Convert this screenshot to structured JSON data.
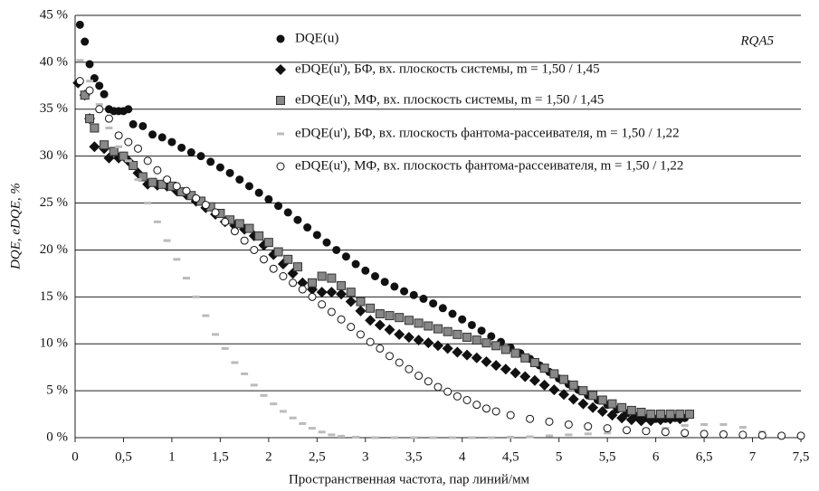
{
  "chart_data": {
    "type": "scatter",
    "xlabel": "Пространственная частота, пар линий/мм",
    "ylabel": "DQE, eDQE, %",
    "annotation": "RQA5",
    "grid": true,
    "xlim": [
      0,
      7.5
    ],
    "xticks": [
      0,
      {
        "value": 0.5,
        "label": "0,5"
      },
      1,
      {
        "value": 1.5,
        "label": "1,5"
      },
      2,
      {
        "value": 2.5,
        "label": "2,5"
      },
      3,
      {
        "value": 3.5,
        "label": "3,5"
      },
      4,
      {
        "value": 4.5,
        "label": "4,5"
      },
      5,
      {
        "value": 5.5,
        "label": "5,5"
      },
      6,
      {
        "value": 6.5,
        "label": "6,5"
      },
      7,
      {
        "value": 7.5,
        "label": "7,5"
      }
    ],
    "ylim": [
      0,
      45
    ],
    "yticks": [
      {
        "value": 0,
        "label": "0 %"
      },
      {
        "value": 5,
        "label": "5 %"
      },
      {
        "value": 10,
        "label": "10 %"
      },
      {
        "value": 15,
        "label": "15 %"
      },
      {
        "value": 20,
        "label": "20 %"
      },
      {
        "value": 25,
        "label": "25 %"
      },
      {
        "value": 30,
        "label": "30 %"
      },
      {
        "value": 35,
        "label": "35 %"
      },
      {
        "value": 40,
        "label": "40 %"
      },
      {
        "value": 45,
        "label": "45 %"
      }
    ],
    "series": [
      {
        "name": "DQE(u)",
        "color": "#111111",
        "marker": "circle",
        "x": [
          0.05,
          0.1,
          0.15,
          0.2,
          0.25,
          0.3,
          0.35,
          0.4,
          0.45,
          0.5,
          0.55,
          0.6,
          0.7,
          0.8,
          0.9,
          1.0,
          1.1,
          1.2,
          1.3,
          1.4,
          1.5,
          1.6,
          1.7,
          1.8,
          1.9,
          2.0,
          2.1,
          2.2,
          2.3,
          2.4,
          2.5,
          2.6,
          2.7,
          2.8,
          2.9,
          3.0,
          3.1,
          3.2,
          3.3,
          3.4,
          3.5,
          3.6,
          3.7,
          3.8,
          3.9,
          4.0,
          4.1,
          4.2,
          4.3,
          4.4,
          4.5,
          4.6,
          4.7,
          4.8,
          4.9,
          5.0,
          5.1,
          5.2,
          5.3,
          5.4,
          5.5,
          5.6,
          5.7,
          5.8,
          5.9,
          6.0,
          6.1,
          6.2,
          6.3
        ],
        "values": [
          44,
          42.2,
          39.8,
          38.3,
          37.5,
          36.6,
          35,
          34.8,
          34.8,
          34.8,
          35,
          33.4,
          33.2,
          32.3,
          32,
          31.5,
          30.9,
          30.4,
          30,
          29.4,
          28.8,
          28.2,
          27.5,
          26.8,
          26.1,
          25.4,
          24.7,
          24,
          23.2,
          22.4,
          21.6,
          20.8,
          20,
          19.3,
          18.5,
          17.8,
          17.2,
          16.6,
          16.1,
          15.6,
          15.2,
          14.8,
          14.3,
          13.8,
          13.2,
          12.6,
          12,
          11.4,
          10.8,
          10.2,
          9.6,
          9,
          8.4,
          7.7,
          7,
          6.3,
          5.7,
          5.1,
          4.5,
          4,
          3.5,
          3,
          2.6,
          2.3,
          2.1,
          2,
          2,
          2.1,
          2.1
        ]
      },
      {
        "name": "eDQE(u'), БФ, вх. плоскость системы, m = 1,50 / 1,45",
        "color": "#111111",
        "marker": "diamond",
        "x": [
          0.03,
          0.1,
          0.15,
          0.2,
          0.3,
          0.35,
          0.45,
          0.55,
          0.65,
          0.75,
          0.85,
          0.95,
          1.05,
          1.15,
          1.25,
          1.35,
          1.45,
          1.55,
          1.65,
          1.75,
          1.85,
          1.95,
          2.05,
          2.15,
          2.25,
          2.35,
          2.45,
          2.55,
          2.65,
          2.75,
          2.85,
          2.95,
          3.05,
          3.15,
          3.25,
          3.35,
          3.45,
          3.55,
          3.65,
          3.75,
          3.85,
          3.95,
          4.05,
          4.15,
          4.25,
          4.35,
          4.45,
          4.55,
          4.65,
          4.75,
          4.85,
          4.95,
          5.05,
          5.15,
          5.25,
          5.35,
          5.45,
          5.55,
          5.65,
          5.75,
          5.85,
          5.95,
          6.05,
          6.15,
          6.25
        ],
        "values": [
          37.8,
          36.5,
          34,
          31,
          30.8,
          29.8,
          29.8,
          29.5,
          28.2,
          27,
          26.9,
          26.8,
          26.3,
          25.9,
          25.2,
          24.5,
          23.8,
          23,
          22.6,
          22.2,
          21.5,
          20.5,
          19.5,
          18.5,
          17.5,
          16.5,
          15.8,
          15.5,
          15.5,
          15.3,
          14.5,
          13.5,
          12.5,
          12,
          11.5,
          11,
          10.7,
          10.4,
          10.1,
          9.8,
          9.5,
          9.1,
          8.8,
          8.5,
          8.1,
          7.7,
          7.3,
          6.9,
          6.5,
          6.1,
          5.6,
          5.1,
          4.6,
          4.1,
          3.6,
          3.2,
          2.8,
          2.4,
          2.1,
          1.9,
          1.8,
          1.8,
          1.9,
          2,
          2
        ]
      },
      {
        "name": "eDQE(u'), МФ, вх. плоскость системы, m = 1,50 / 1,45",
        "color": "#888888",
        "marker": "square",
        "x": [
          0.1,
          0.15,
          0.2,
          0.3,
          0.4,
          0.5,
          0.6,
          0.7,
          0.8,
          0.9,
          1.0,
          1.1,
          1.2,
          1.3,
          1.4,
          1.5,
          1.6,
          1.7,
          1.8,
          1.9,
          2.0,
          2.1,
          2.2,
          2.3,
          2.45,
          2.55,
          2.65,
          2.75,
          2.85,
          2.95,
          3.05,
          3.15,
          3.25,
          3.35,
          3.45,
          3.55,
          3.65,
          3.75,
          3.85,
          3.95,
          4.05,
          4.15,
          4.25,
          4.35,
          4.45,
          4.55,
          4.65,
          4.75,
          4.85,
          4.95,
          5.05,
          5.15,
          5.25,
          5.35,
          5.45,
          5.55,
          5.65,
          5.75,
          5.85,
          5.95,
          6.05,
          6.15,
          6.25,
          6.35
        ],
        "values": [
          36.5,
          34,
          33,
          31.2,
          30.5,
          30,
          29,
          27.8,
          27.2,
          27,
          26.8,
          26.2,
          25.8,
          25.2,
          24.6,
          23.9,
          23.2,
          22.8,
          22.3,
          21.5,
          20.8,
          19.8,
          19,
          18.2,
          16.5,
          17.2,
          17,
          16.2,
          15.5,
          14.5,
          13.8,
          13.2,
          13,
          12.8,
          12.5,
          12.2,
          11.9,
          11.6,
          11.3,
          11,
          10.7,
          10.4,
          10.1,
          9.8,
          9.4,
          9,
          8.5,
          8,
          7.4,
          6.8,
          6.2,
          5.6,
          5,
          4.5,
          4,
          3.6,
          3.2,
          2.9,
          2.7,
          2.5,
          2.5,
          2.5,
          2.5,
          2.5
        ]
      },
      {
        "name": "eDQE(u'), БФ, вх. плоскость фантома-рассеивателя, m = 1,50 / 1,22",
        "color": "#bbbbbb",
        "marker": "dash",
        "x": [
          0.05,
          0.15,
          0.25,
          0.35,
          0.45,
          0.55,
          0.65,
          0.75,
          0.85,
          0.95,
          1.05,
          1.15,
          1.25,
          1.35,
          1.45,
          1.55,
          1.65,
          1.75,
          1.85,
          1.95,
          2.05,
          2.15,
          2.25,
          2.35,
          2.45,
          2.55,
          2.65,
          2.75,
          2.9,
          3.1,
          3.3,
          3.5,
          3.7,
          3.9,
          4.1,
          4.3,
          4.5,
          4.7,
          4.9,
          5.1,
          5.3,
          5.5,
          5.7,
          5.9,
          6.1,
          6.3,
          6.5,
          6.7,
          6.9,
          7.1,
          7.3
        ],
        "values": [
          40.2,
          38,
          35.5,
          33,
          31,
          29.5,
          27.5,
          25,
          23,
          21,
          19,
          17,
          15,
          13,
          11,
          9.5,
          8,
          6.8,
          5.6,
          4.5,
          3.6,
          2.8,
          2.1,
          1.5,
          1,
          0.6,
          0.3,
          0.15,
          0.05,
          0,
          0,
          0,
          0,
          0,
          0,
          0,
          0.05,
          0.1,
          0.2,
          0.3,
          0.4,
          0.5,
          0.7,
          0.9,
          1,
          1.3,
          1.4,
          1.4,
          1.1,
          0.6,
          0.2
        ]
      },
      {
        "name": "eDQE(u'), МФ, вх. плоскость фантома-рассеивателя, m = 1,50 / 1,22",
        "color": "#111111",
        "marker": "ring",
        "x": [
          0.05,
          0.15,
          0.25,
          0.35,
          0.45,
          0.55,
          0.65,
          0.75,
          0.85,
          0.95,
          1.05,
          1.15,
          1.25,
          1.35,
          1.45,
          1.55,
          1.65,
          1.75,
          1.85,
          1.95,
          2.05,
          2.15,
          2.25,
          2.35,
          2.45,
          2.55,
          2.65,
          2.75,
          2.85,
          2.95,
          3.05,
          3.15,
          3.25,
          3.35,
          3.45,
          3.55,
          3.65,
          3.75,
          3.85,
          3.95,
          4.05,
          4.15,
          4.25,
          4.35,
          4.5,
          4.7,
          4.9,
          5.1,
          5.3,
          5.5,
          5.7,
          5.9,
          6.1,
          6.3,
          6.5,
          6.7,
          6.9,
          7.1,
          7.3,
          7.5
        ],
        "values": [
          38,
          37,
          35,
          34,
          32.2,
          31.5,
          30.8,
          29.5,
          28.5,
          27.5,
          26.8,
          26.3,
          25.5,
          24.8,
          24,
          23,
          22,
          21,
          20,
          19,
          18,
          17.2,
          16.5,
          15.8,
          15,
          14.2,
          13.4,
          12.6,
          11.8,
          11,
          10.2,
          9.5,
          8.7,
          8,
          7.3,
          6.6,
          6,
          5.4,
          4.9,
          4.4,
          4,
          3.5,
          3.1,
          2.8,
          2.4,
          2,
          1.7,
          1.4,
          1.2,
          1,
          0.8,
          0.7,
          0.6,
          0.5,
          0.4,
          0.35,
          0.3,
          0.25,
          0.2,
          0.2
        ]
      }
    ]
  }
}
